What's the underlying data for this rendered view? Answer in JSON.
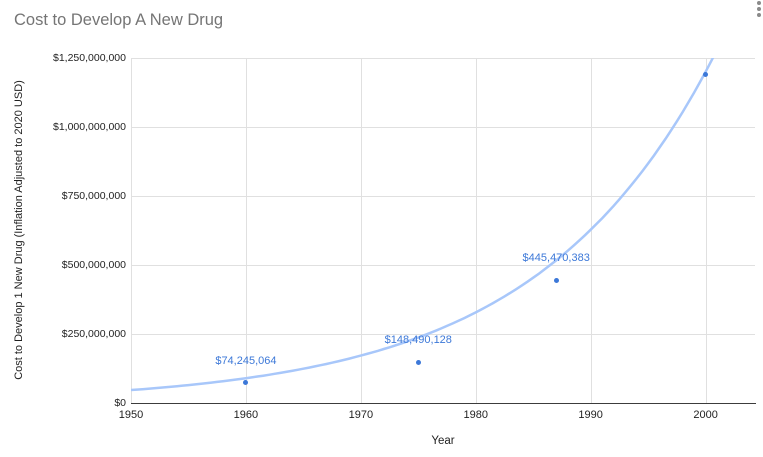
{
  "chart": {
    "title": "Cost to Develop A New Drug",
    "x_axis_title": "Year",
    "y_axis_title": "Cost to Develop 1 New Drug (Inflation Adjusted to 2020 USD)",
    "x_ticks": [
      "1950",
      "1960",
      "1970",
      "1980",
      "1990",
      "2000"
    ],
    "y_ticks": [
      "$0",
      "$250,000,000",
      "$500,000,000",
      "$750,000,000",
      "$1,000,000,000",
      "$1,250,000,000"
    ],
    "options_menu_icon": "kebab-menu-icon"
  },
  "chart_data": {
    "type": "scatter",
    "title": "Cost to Develop A New Drug",
    "xlabel": "Year",
    "ylabel": "Cost to Develop 1 New Drug (Inflation Adjusted to 2020 USD)",
    "xlim": [
      1950,
      2004.3
    ],
    "ylim": [
      0,
      1250000000
    ],
    "grid": true,
    "points": [
      {
        "x": 1960,
        "y": 74245064,
        "label": "$74,245,064"
      },
      {
        "x": 1975,
        "y": 148490128,
        "label": "$148,490,128"
      },
      {
        "x": 1987,
        "y": 445470383,
        "label": "$445,470,383"
      },
      {
        "x": 2000,
        "y": 1190000000,
        "label": null
      }
    ],
    "trendline": {
      "type": "exponential",
      "value_at_1950": 47000000,
      "value_at_2000": 1200000000
    },
    "colors": {
      "point": "#3c78d8",
      "label": "#3c78d8",
      "trendline": "#a8c7fa",
      "gridline": "#e0e0e0",
      "axis": "#3c3c3c",
      "title": "#757575"
    }
  }
}
